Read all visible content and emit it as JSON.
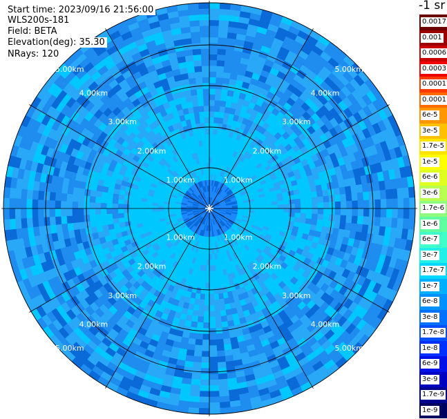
{
  "header": {
    "start_time": "Start time: 2023/09/16 21:56:00",
    "station": "WLS200s-181",
    "field": "Field: BETA",
    "elevation": "Elevation(deg): 35.30",
    "nrays": "NRays: 120"
  },
  "ring_labels": [
    "1.00km",
    "2.00km",
    "3.00km",
    "4.00km",
    "5.00km"
  ],
  "colorbar": {
    "unit_title": "-1 sr",
    "entries": [
      {
        "label": "0.0017",
        "color": "#6a0000"
      },
      {
        "label": "0.001",
        "color": "#9c0000"
      },
      {
        "label": "0.0006",
        "color": "#c80000"
      },
      {
        "label": "0.0003",
        "color": "#f00000"
      },
      {
        "label": "0.00017",
        "color": "#ff3a00"
      },
      {
        "label": "0.0001",
        "color": "#ff6a00"
      },
      {
        "label": "6e-5",
        "color": "#ff9600"
      },
      {
        "label": "3e-5",
        "color": "#ffc000"
      },
      {
        "label": "1.7e-5",
        "color": "#ffe400"
      },
      {
        "label": "1e-5",
        "color": "#ffff00"
      },
      {
        "label": "6e-6",
        "color": "#e0ff20"
      },
      {
        "label": "3e-6",
        "color": "#b8ff50"
      },
      {
        "label": "1.7e-6",
        "color": "#90ff80"
      },
      {
        "label": "1e-6",
        "color": "#60ffa0"
      },
      {
        "label": "6e-7",
        "color": "#40ffc8"
      },
      {
        "label": "3e-7",
        "color": "#20f0e8"
      },
      {
        "label": "1.7e-7",
        "color": "#00d8ff"
      },
      {
        "label": "1e-7",
        "color": "#00b0ff"
      },
      {
        "label": "6e-8",
        "color": "#0090ff"
      },
      {
        "label": "3e-8",
        "color": "#0070ff"
      },
      {
        "label": "1.7e-8",
        "color": "#0050ff"
      },
      {
        "label": "1e-8",
        "color": "#0030ff"
      },
      {
        "label": "6e-9",
        "color": "#0010e8"
      },
      {
        "label": "3e-9",
        "color": "#0000c0"
      },
      {
        "label": "1.7e-9",
        "color": "#000090"
      },
      {
        "label": "1e-9",
        "color": "#000060"
      }
    ]
  },
  "palette": {
    "inner": "#1e88ff",
    "mid": "#00c8ff",
    "outer_a": "#1f8cf0",
    "outer_b": "#2aa8f8",
    "outer_c": "#0a6ad8",
    "edge": "#40e0e0"
  }
}
